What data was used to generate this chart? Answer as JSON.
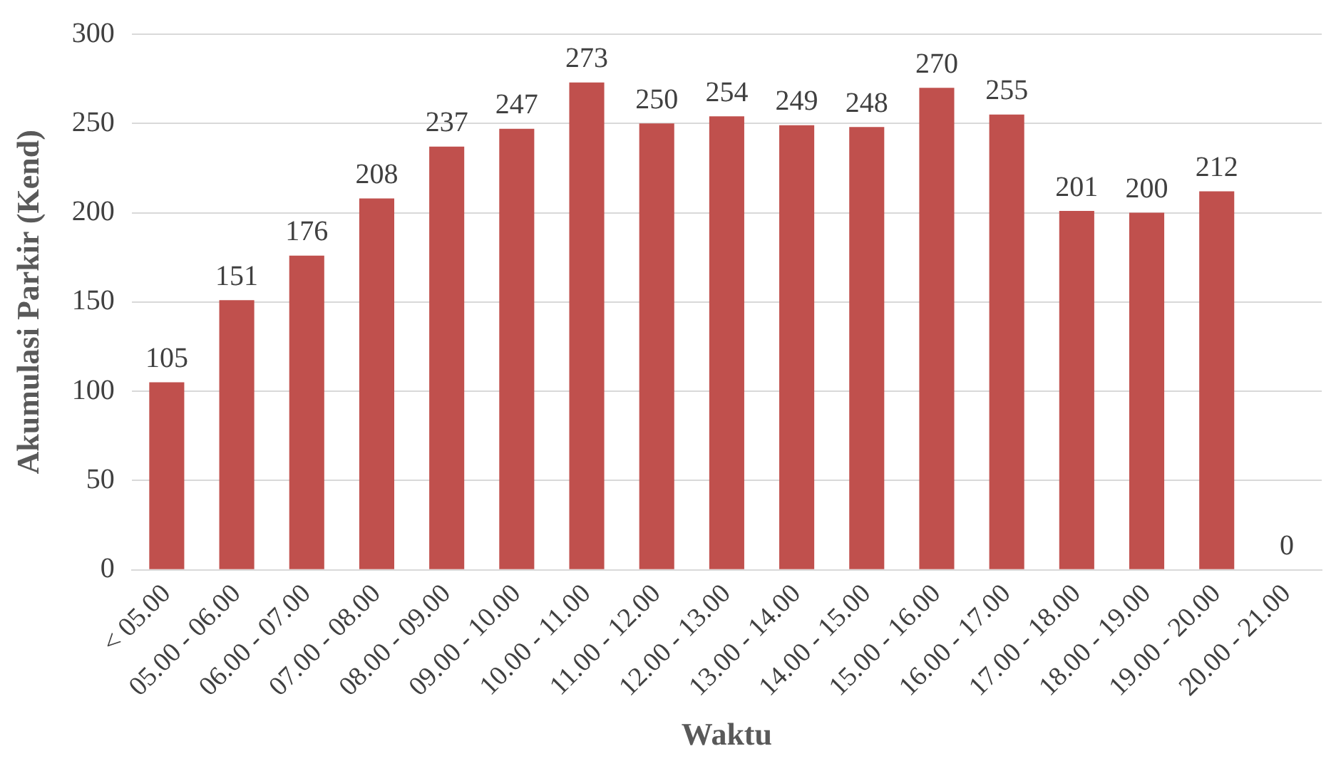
{
  "chart_data": {
    "type": "bar",
    "xlabel": "Waktu",
    "ylabel": "Akumulasi Parkir (Kend)",
    "categories": [
      "< 05.00",
      "05.00 - 06.00",
      "06.00 - 07.00",
      "07.00 - 08.00",
      "08.00 - 09.00",
      "09.00 - 10.00",
      "10.00 - 11.00",
      "11.00 - 12.00",
      "12.00 - 13.00",
      "13.00 - 14.00",
      "14.00 - 15.00",
      "15.00 - 16.00",
      "16.00 - 17.00",
      "17.00 - 18.00",
      "18.00 - 19.00",
      "19.00 - 20.00",
      "20.00 - 21.00"
    ],
    "values": [
      105,
      151,
      176,
      208,
      237,
      247,
      273,
      250,
      254,
      249,
      248,
      270,
      255,
      201,
      200,
      212,
      0
    ],
    "color": "#c0504d",
    "ylim": [
      0,
      300
    ],
    "yticks": [
      0,
      50,
      100,
      150,
      200,
      250,
      300
    ],
    "grid": "y",
    "legend": false,
    "data_labels": true
  }
}
